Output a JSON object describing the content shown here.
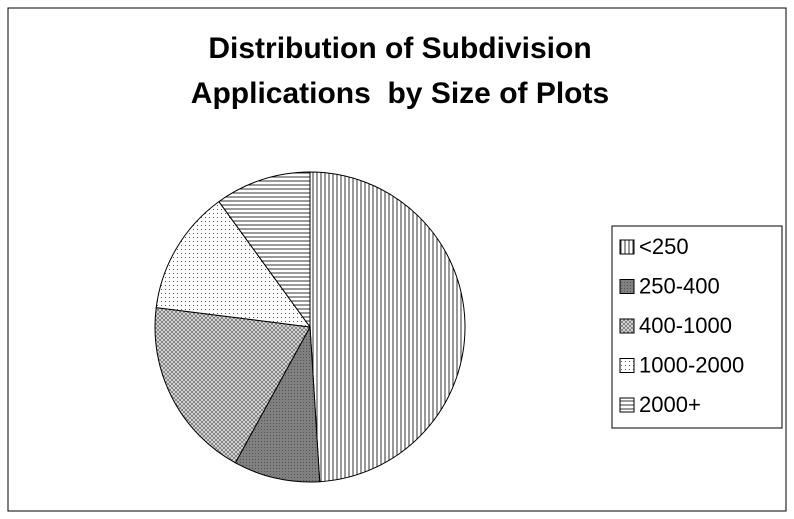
{
  "chart_data": {
    "type": "pie",
    "title": [
      "Distribution of Subdivision",
      "Applications  by Size of Plots"
    ],
    "categories": [
      "<250",
      "250-400",
      "400-1000",
      "1000-2000",
      "2000+"
    ],
    "values": [
      49,
      9,
      19,
      13,
      10
    ],
    "patterns": [
      "vertical",
      "solid-gray",
      "crosshatch",
      "dots",
      "horizontal"
    ],
    "legend": "right"
  }
}
